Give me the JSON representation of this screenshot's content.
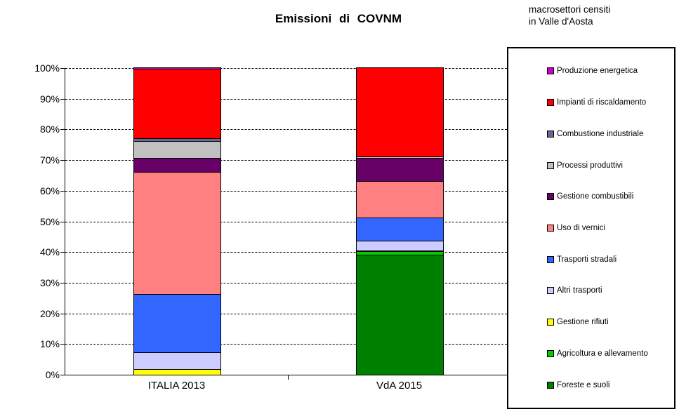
{
  "page": {
    "note_lines": [
      "macrosettori censiti",
      "in Valle d'Aosta"
    ]
  },
  "chart_data": {
    "type": "bar",
    "stacked": true,
    "title": "Emissioni di COVNM",
    "unit": "percent",
    "categories": [
      "ITALIA 2013",
      "VdA 2015"
    ],
    "series": [
      {
        "name": "Produzione energetica",
        "color": "#CC00CC",
        "values": [
          0.5,
          0
        ]
      },
      {
        "name": "Impianti di riscaldamento",
        "color": "#FF0000",
        "values": [
          22.5,
          29
        ]
      },
      {
        "name": "Combustione industriale",
        "color": "#666699",
        "values": [
          1,
          0
        ]
      },
      {
        "name": "Processi produttivi",
        "color": "#C0C0C0",
        "values": [
          5.5,
          0.5
        ]
      },
      {
        "name": "Gestione combustibili",
        "color": "#660066",
        "values": [
          4.5,
          7.5
        ]
      },
      {
        "name": "Uso di vernici",
        "color": "#FF8080",
        "values": [
          40,
          12
        ]
      },
      {
        "name": "Trasporti stradali",
        "color": "#3366FF",
        "values": [
          19,
          7.5
        ]
      },
      {
        "name": "Altri trasporti",
        "color": "#CCCCFF",
        "values": [
          5.5,
          3.2
        ]
      },
      {
        "name": "Gestione rifiuti",
        "color": "#FFFF00",
        "values": [
          1.5,
          0.3
        ]
      },
      {
        "name": "Agricoltura e allevamento",
        "color": "#00CC00",
        "values": [
          0,
          1
        ]
      },
      {
        "name": "Foreste e suoli",
        "color": "#008000",
        "values": [
          0,
          39
        ]
      }
    ],
    "stack_order": "first series at top of bar",
    "ylim": [
      0,
      100
    ],
    "y_tick_step": 10,
    "y_tick_labels": [
      "0%",
      "10%",
      "20%",
      "30%",
      "40%",
      "50%",
      "60%",
      "70%",
      "80%",
      "90%",
      "100%"
    ],
    "grid": "horizontal dashed",
    "legend_position": "right"
  }
}
